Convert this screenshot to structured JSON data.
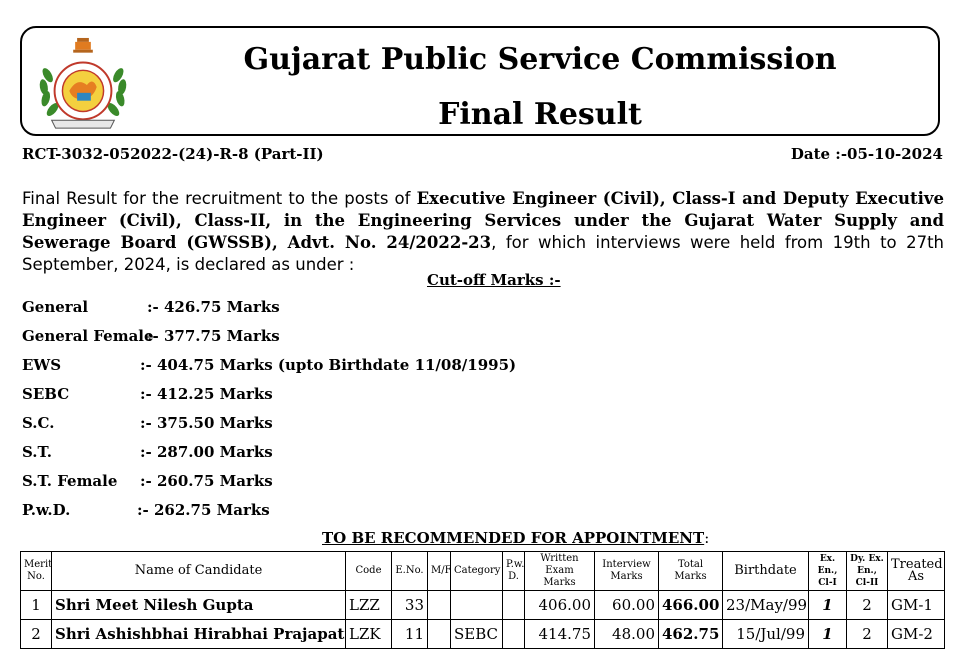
{
  "header": {
    "emblem_text": "ગુજરાત જાહેર સેવા આયોગ",
    "emblem_motto": "સત્યમેવ જયતે",
    "title": "Gujarat Public Service Commission",
    "subtitle": "Final Result"
  },
  "reference": "RCT-3032-052022-(24)-R-8 (Part-II)",
  "date": "Date :-05-10-2024",
  "intro": {
    "p1": "Final Result for the recruitment to the posts of ",
    "b1": "Executive Engineer (Civil), Class-I and Deputy Executive Engineer (Civil), Class-II, in the Engineering Services under the Gujarat Water Supply and Sewerage Board (GWSSB), Advt. No. 24/2022-23",
    "p2": ", for which interviews were held from 19th to 27th September, 2024, is declared as under :"
  },
  "cutoff_title": "Cut-off Marks :-",
  "cutoffs": [
    {
      "label": "General",
      "value": ":-  426.75 Marks"
    },
    {
      "label": "General  Female",
      "value": ":-  377.75 Marks"
    },
    {
      "label": "EWS",
      "value": ":-  404.75 Marks  (upto Birthdate 11/08/1995)"
    },
    {
      "label": "SEBC",
      "value": ":-  412.25 Marks"
    },
    {
      "label": "S.C.",
      "value": ":-  375.50 Marks"
    },
    {
      "label": "S.T.",
      "value": ":-  287.00 Marks"
    },
    {
      "label": "S.T.  Female",
      "value": ":-  260.75 Marks"
    },
    {
      "label": "P.w.D.",
      "value": ":-  262.75 Marks"
    }
  ],
  "recommend_title": "TO BE RECOMMENDED FOR APPOINTMENT",
  "recommend_suffix": ":",
  "table": {
    "headers": [
      "Merit No.",
      "Name of Candidate",
      "Code",
      "E.No.",
      "M/F",
      "Category",
      "P.w. D.",
      "Written Exam Marks",
      "Interview Marks",
      "Total Marks",
      "Birthdate",
      "Ex. En., Cl-I",
      "Dy. Ex. En., Cl-II",
      "Treated As"
    ],
    "rows": [
      [
        "1",
        "Shri Meet Nilesh Gupta",
        "LZZ",
        "33",
        "",
        "",
        "",
        "406.00",
        "60.00",
        "466.00",
        "23/May/99",
        "1",
        "2",
        "GM-1"
      ],
      [
        "2",
        "Shri Ashishbhai Hirabhai Prajapati",
        "LZK",
        "11",
        "",
        "SEBC",
        "",
        "414.75",
        "48.00",
        "462.75",
        "15/Jul/99",
        "1",
        "2",
        "GM-2"
      ]
    ]
  }
}
